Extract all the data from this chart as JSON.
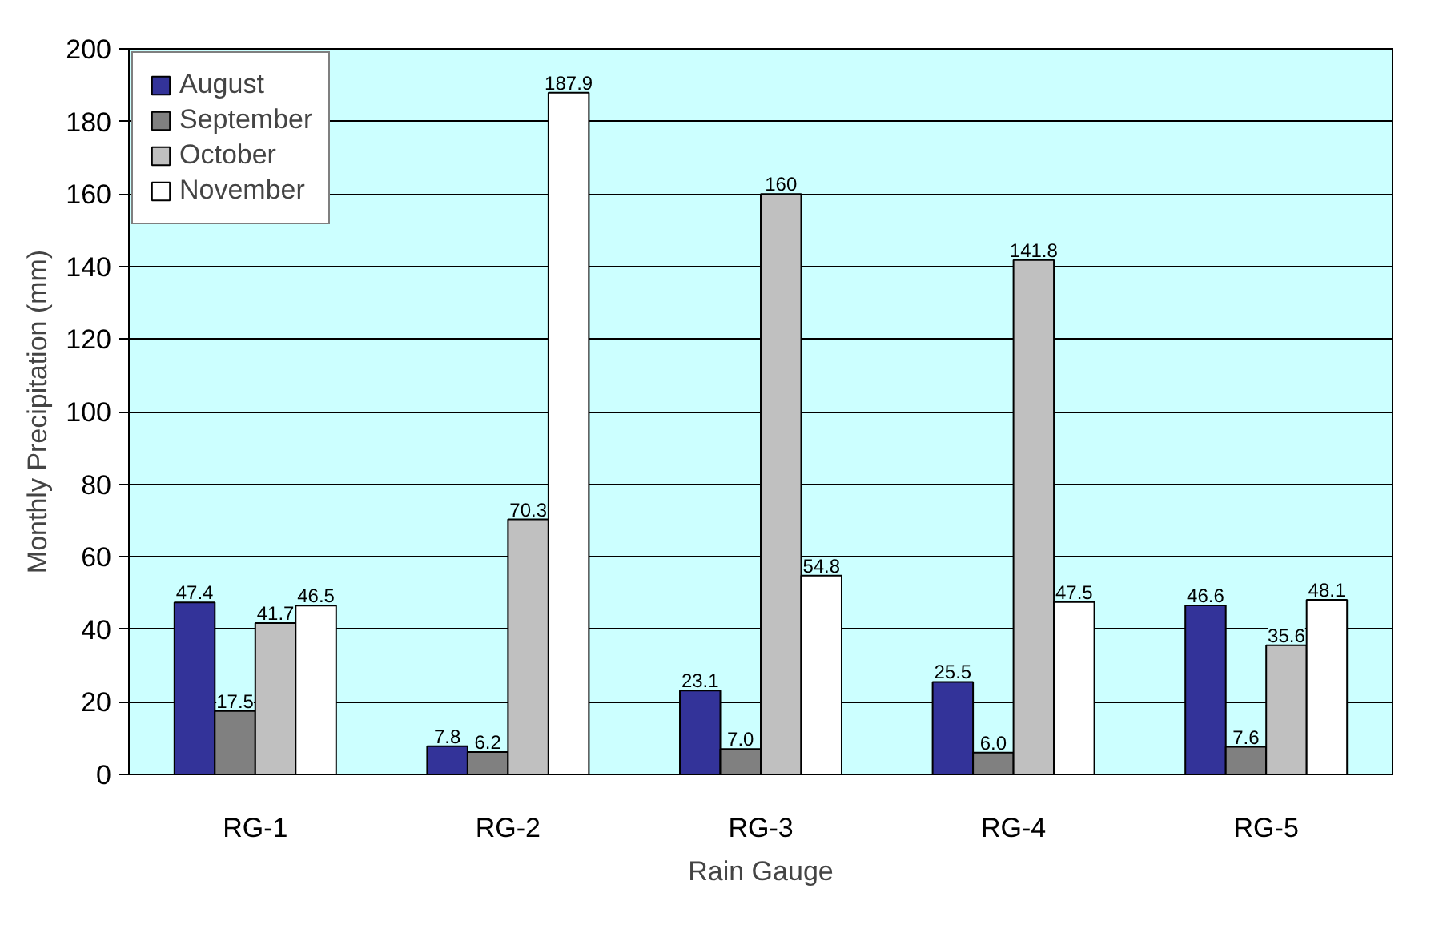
{
  "chart_data": {
    "type": "bar",
    "xlabel": "Rain Gauge",
    "ylabel": "Monthly Precipitation (mm)",
    "categories": [
      "RG-1",
      "RG-2",
      "RG-3",
      "RG-4",
      "RG-5"
    ],
    "series": [
      {
        "name": "August",
        "color": "#333399",
        "values": [
          47.4,
          7.8,
          23.1,
          25.5,
          46.6
        ],
        "value_labels": [
          "47.4",
          "7.8",
          "23.1",
          "25.5",
          "46.6"
        ]
      },
      {
        "name": "September",
        "color": "#808080",
        "values": [
          17.5,
          6.2,
          7.0,
          6.0,
          7.6
        ],
        "value_labels": [
          "17.5",
          "6.2",
          "7.0",
          "6.0",
          "7.6"
        ]
      },
      {
        "name": "October",
        "color": "#c0c0c0",
        "values": [
          41.7,
          70.3,
          160,
          141.8,
          35.6
        ],
        "value_labels": [
          "41.7",
          "70.3",
          "160",
          "141.8",
          "35.6"
        ]
      },
      {
        "name": "November",
        "color": "#ffffff",
        "values": [
          46.5,
          187.9,
          54.8,
          47.5,
          48.1
        ],
        "value_labels": [
          "46.5",
          "187.9",
          "54.8",
          "47.5",
          "48.1"
        ]
      }
    ],
    "ylim": [
      0,
      200
    ],
    "yticks": [
      0,
      20,
      40,
      60,
      80,
      100,
      120,
      140,
      160,
      180,
      200
    ],
    "grid": "y",
    "legend": "top left"
  }
}
